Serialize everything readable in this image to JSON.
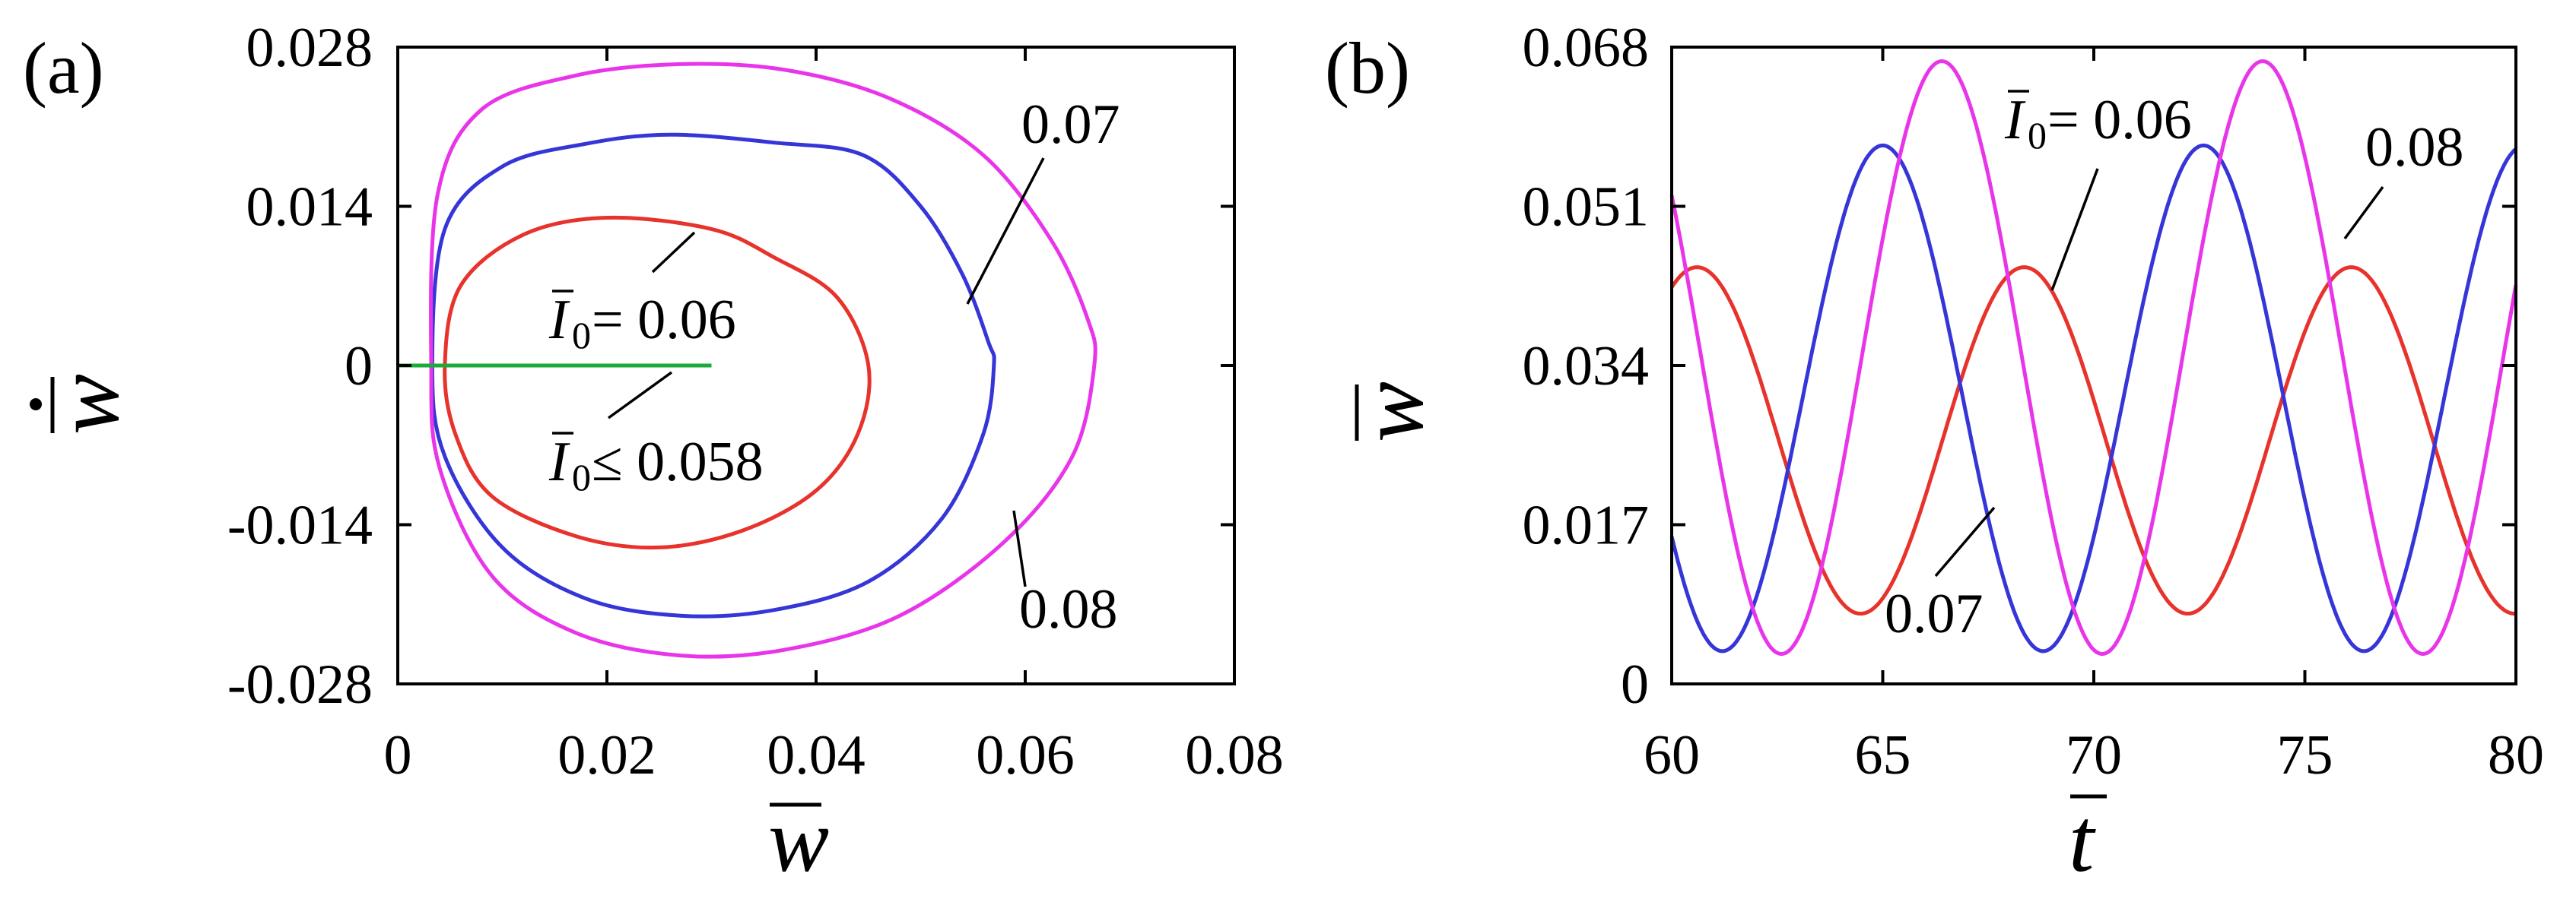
{
  "chart_data": [
    {
      "panel_label": "(a)",
      "type": "line",
      "xlabel_symbol": "w",
      "ylabel_symbol": "w",
      "xlim": [
        0,
        0.08
      ],
      "ylim": [
        -0.028,
        0.028
      ],
      "x_ticks": [
        "0",
        "0.02",
        "0.04",
        "0.06",
        "0.08"
      ],
      "y_ticks": [
        "0.028",
        "0.014",
        "0",
        "-0.014",
        "-0.028"
      ],
      "x_tick_values": [
        0,
        0.02,
        0.04,
        0.06,
        0.08
      ],
      "y_tick_values": [
        0.028,
        0.014,
        0,
        -0.014,
        -0.028
      ],
      "series": [
        {
          "color": "#e8322c",
          "kind": "orbit",
          "points": [
            [
              0.0045,
              0.0
            ],
            [
              0.006,
              0.007
            ],
            [
              0.012,
              0.0115
            ],
            [
              0.02,
              0.013
            ],
            [
              0.03,
              0.012
            ],
            [
              0.036,
              0.0095
            ],
            [
              0.042,
              0.006
            ],
            [
              0.045,
              0.0
            ],
            [
              0.044,
              -0.006
            ],
            [
              0.04,
              -0.011
            ],
            [
              0.033,
              -0.0145
            ],
            [
              0.025,
              -0.016
            ],
            [
              0.017,
              -0.015
            ],
            [
              0.009,
              -0.0115
            ],
            [
              0.0055,
              -0.006
            ]
          ]
        },
        {
          "color": "#3535d8",
          "kind": "orbit",
          "points": [
            [
              0.0033,
              0.0
            ],
            [
              0.0045,
              0.012
            ],
            [
              0.01,
              0.0175
            ],
            [
              0.018,
              0.0195
            ],
            [
              0.026,
              0.0203
            ],
            [
              0.036,
              0.0196
            ],
            [
              0.0445,
              0.0185
            ],
            [
              0.05,
              0.014
            ],
            [
              0.054,
              0.008
            ],
            [
              0.0565,
              0.002
            ],
            [
              0.057,
              0.0
            ],
            [
              0.056,
              -0.006
            ],
            [
              0.052,
              -0.0135
            ],
            [
              0.045,
              -0.019
            ],
            [
              0.036,
              -0.0215
            ],
            [
              0.027,
              -0.022
            ],
            [
              0.018,
              -0.0205
            ],
            [
              0.01,
              -0.016
            ],
            [
              0.0045,
              -0.008
            ]
          ]
        },
        {
          "color": "#e935e9",
          "kind": "orbit",
          "points": [
            [
              0.0032,
              0.0
            ],
            [
              0.0038,
              0.015
            ],
            [
              0.008,
              0.0225
            ],
            [
              0.017,
              0.0255
            ],
            [
              0.027,
              0.0265
            ],
            [
              0.037,
              0.026
            ],
            [
              0.047,
              0.0235
            ],
            [
              0.056,
              0.0185
            ],
            [
              0.0625,
              0.011
            ],
            [
              0.066,
              0.004
            ],
            [
              0.0666,
              0.0
            ],
            [
              0.0645,
              -0.008
            ],
            [
              0.058,
              -0.0155
            ],
            [
              0.048,
              -0.022
            ],
            [
              0.037,
              -0.025
            ],
            [
              0.027,
              -0.0255
            ],
            [
              0.017,
              -0.0235
            ],
            [
              0.009,
              -0.0185
            ],
            [
              0.004,
              -0.009
            ]
          ]
        },
        {
          "color": "#1aab3a",
          "kind": "segment",
          "points": [
            [
              0.0,
              0.0
            ],
            [
              0.03,
              0.0
            ]
          ]
        }
      ]
    },
    {
      "panel_label": "(b)",
      "type": "line",
      "xlabel_symbol": "t",
      "ylabel_symbol": "w",
      "xlim": [
        60,
        80
      ],
      "ylim": [
        0,
        0.068
      ],
      "x_ticks": [
        "60",
        "65",
        "70",
        "75",
        "80"
      ],
      "y_ticks": [
        "0.068",
        "0.051",
        "0.034",
        "0.017",
        "0"
      ],
      "x_tick_values": [
        60,
        65,
        70,
        75,
        80
      ],
      "y_tick_values": [
        0.068,
        0.051,
        0.034,
        0.017,
        0
      ],
      "series": [
        {
          "color": "#e8322c",
          "kind": "wave",
          "min": 0.0075,
          "max": 0.0445,
          "period": 7.75,
          "peak_t": 60.6
        },
        {
          "color": "#3535d8",
          "kind": "wave",
          "min": 0.0035,
          "max": 0.0575,
          "period": 7.6,
          "peak_t": 65.0
        },
        {
          "color": "#e935e9",
          "kind": "wave",
          "min": 0.0032,
          "max": 0.0665,
          "period": 7.6,
          "peak_t": 66.4
        }
      ]
    }
  ],
  "annotations": {
    "a_070": "0.07",
    "a_080": "0.08",
    "a_i006_sym": "I",
    "a_i006_sub": "0",
    "a_i006_rel": " = 0.06",
    "a_i058_sym": "I",
    "a_i058_sub": "0",
    "a_i058_rel": " ≤ 0.058",
    "b_i006_sym": "I",
    "b_i006_sub": "0",
    "b_i006_rel": " = 0.06",
    "b_070": "0.07",
    "b_080": "0.08"
  }
}
